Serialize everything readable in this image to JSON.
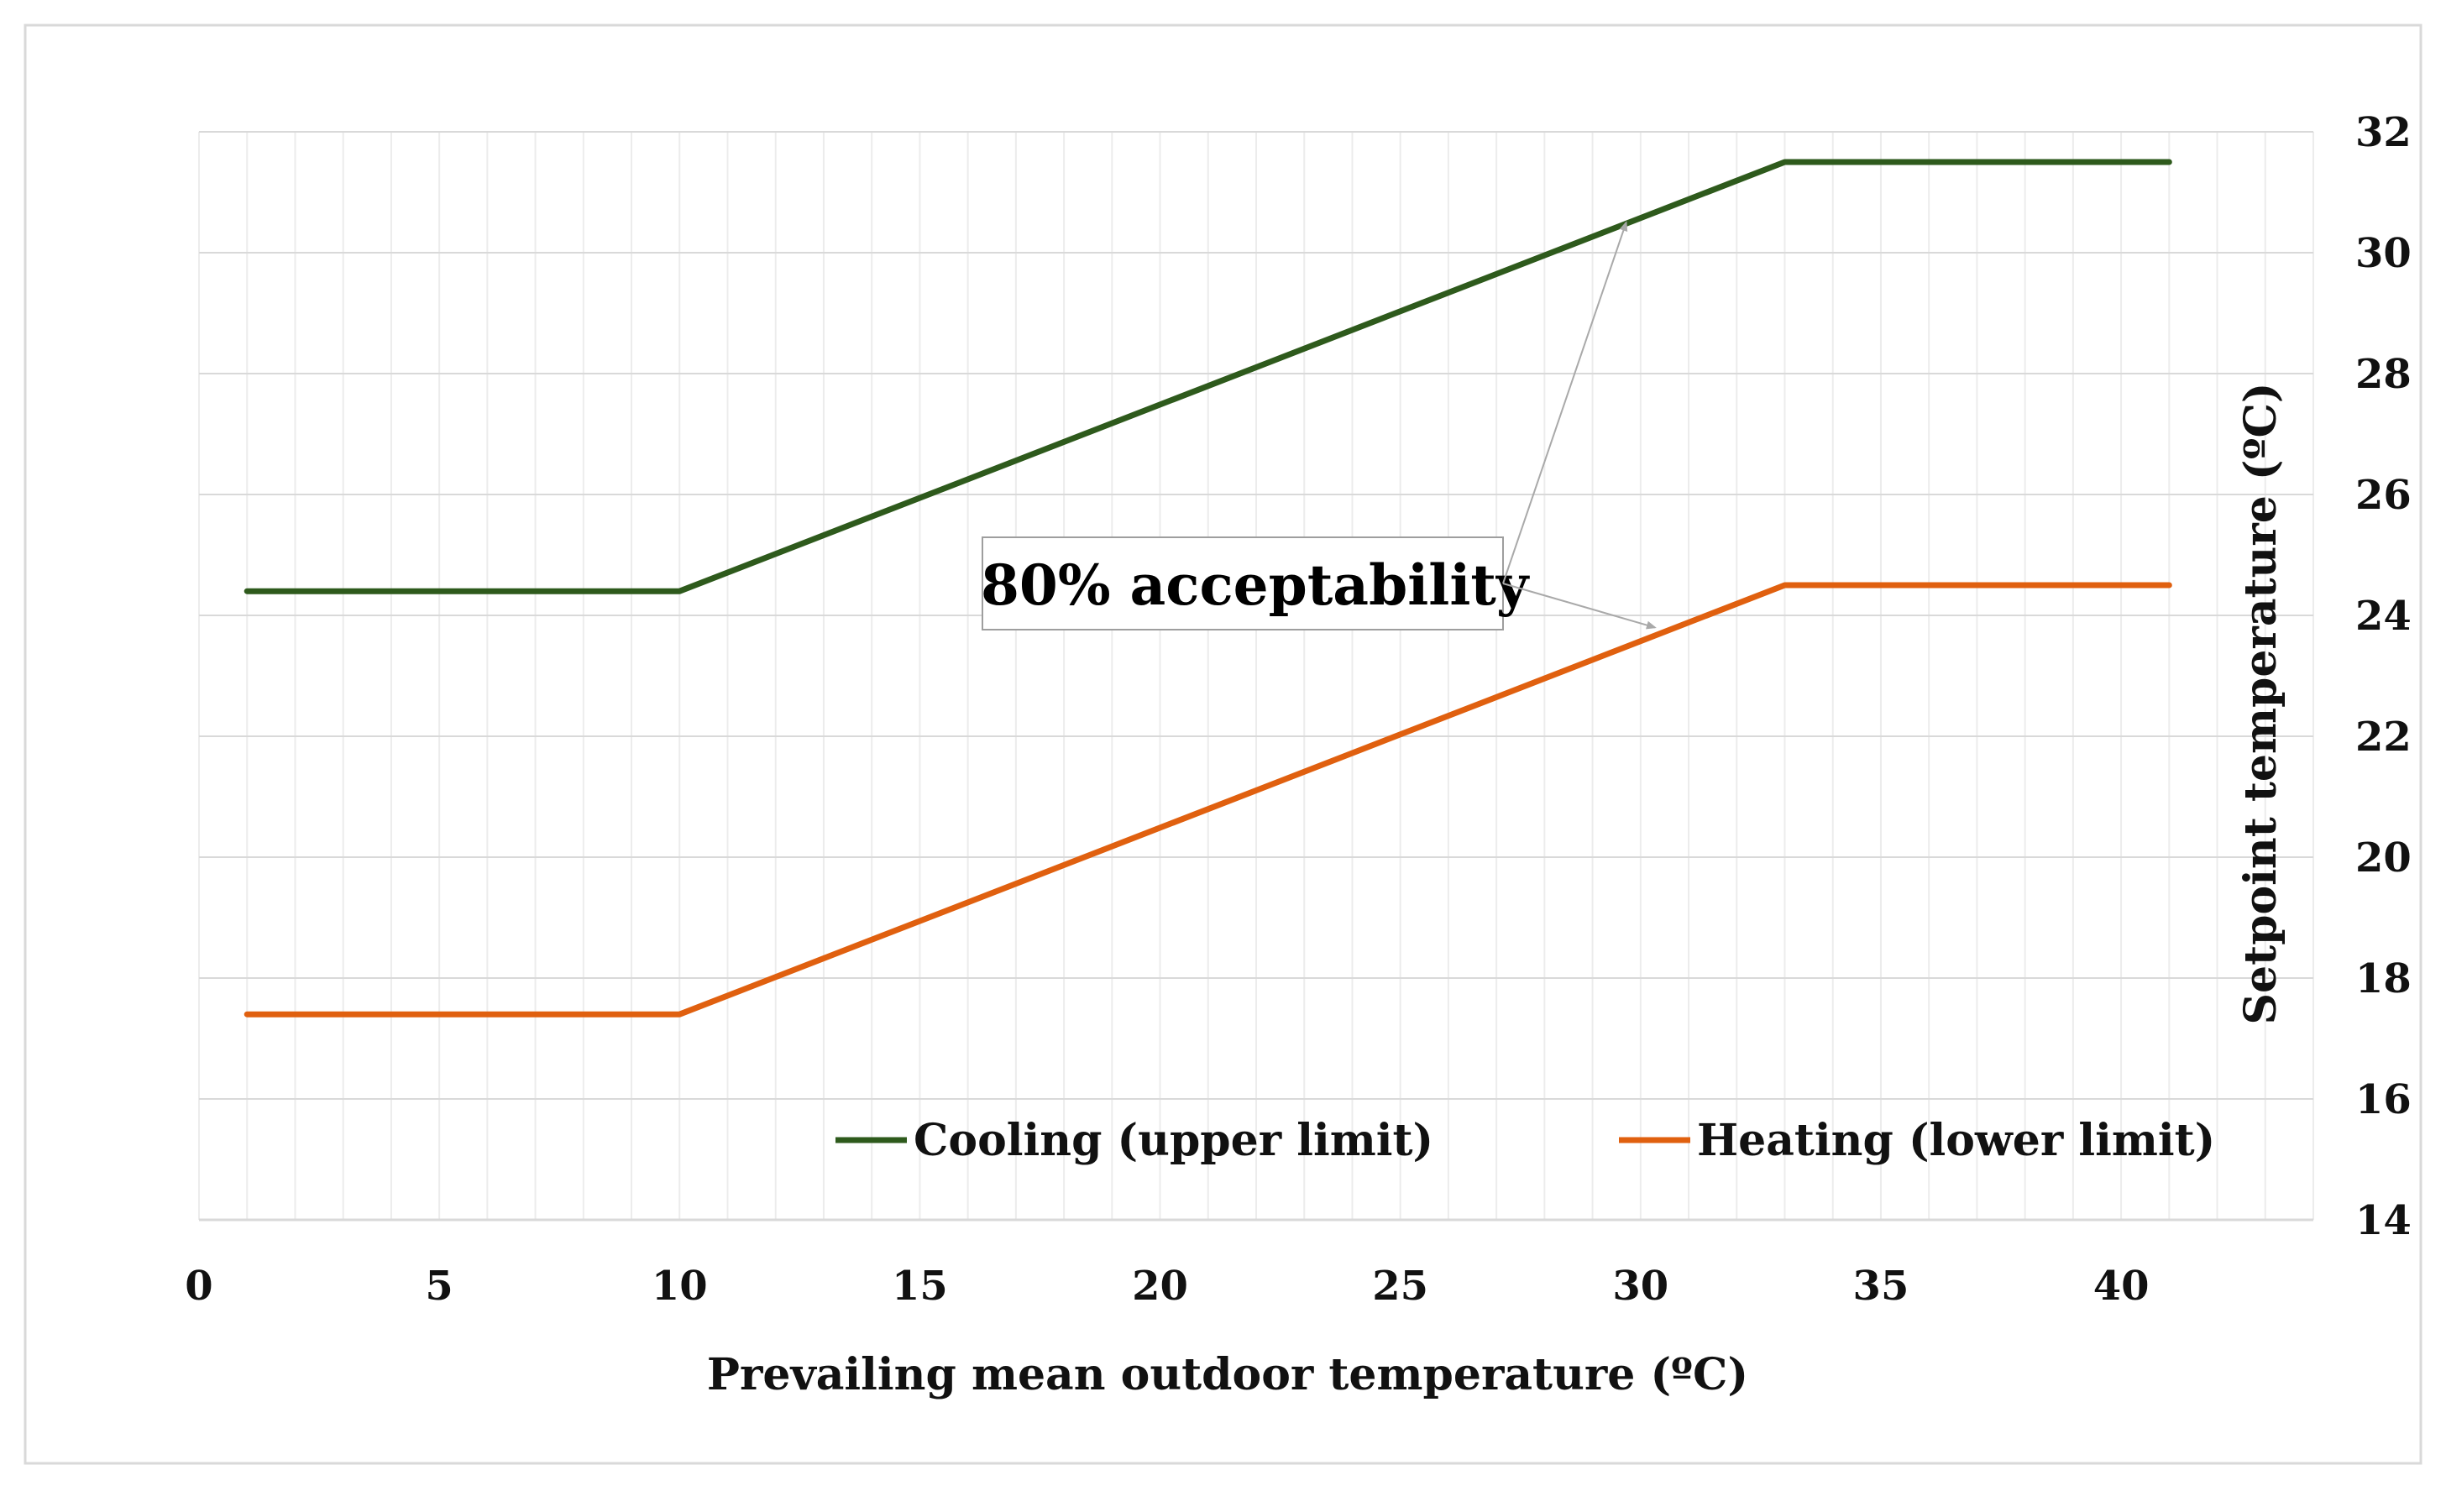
{
  "chart_data": {
    "type": "line",
    "title": "",
    "xlabel": "Prevailing mean outdoor temperature (ºC)",
    "ylabel": "Setpoint temperature (ºC)",
    "xlim": [
      0,
      44
    ],
    "ylim": [
      14,
      32
    ],
    "xticks": [
      0,
      5,
      10,
      15,
      20,
      25,
      30,
      35,
      40
    ],
    "yticks": [
      14,
      16,
      18,
      20,
      22,
      24,
      26,
      28,
      30,
      32
    ],
    "y_axis_side": "right",
    "grid": true,
    "legend_position": "bottom-inside",
    "series": [
      {
        "name": "Cooling (upper limit)",
        "color": "#2e5a1c",
        "x": [
          1,
          10,
          33,
          41
        ],
        "y": [
          24.4,
          24.4,
          31.5,
          31.5
        ]
      },
      {
        "name": "Heating (lower limit)",
        "color": "#e0600f",
        "x": [
          1,
          10,
          33,
          41
        ],
        "y": [
          17.4,
          17.4,
          24.5,
          24.5
        ]
      }
    ],
    "annotations": [
      {
        "text": "80% acceptability",
        "arrow_targets": [
          {
            "x": 29.7,
            "y": 30.5
          },
          {
            "x": 30.3,
            "y": 23.8
          }
        ]
      }
    ]
  }
}
